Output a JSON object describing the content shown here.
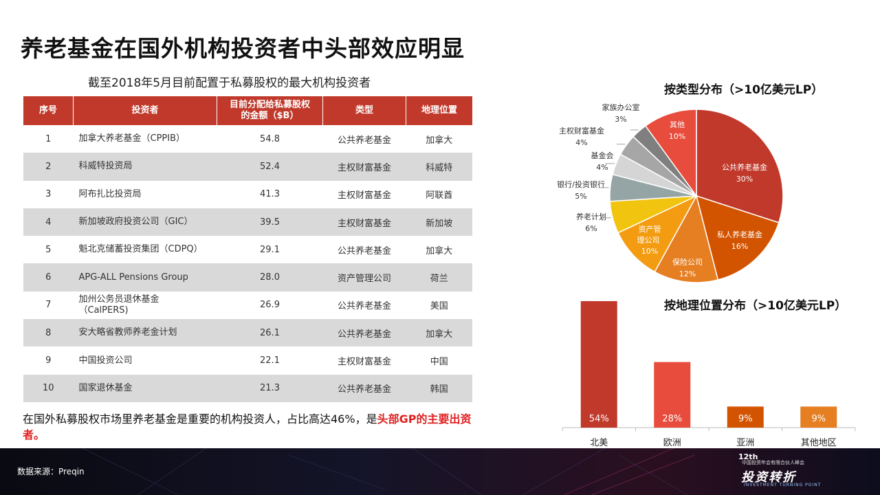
{
  "title": "养老基金在国外机构投资者中头部效应明显",
  "subtitle": "截至2018年5月目前配置于私募股权的最大机构投资者",
  "table": {
    "headers": [
      "序号",
      "投资者",
      "目前分配给私募股权\n的金额（$B）",
      "类型",
      "地理位置"
    ],
    "rows": [
      [
        "1",
        "加拿大养老基金（CPPIB）",
        "54.8",
        "公共养老基金",
        "加拿大"
      ],
      [
        "2",
        "科威特投资局",
        "52.4",
        "主权财富基金",
        "科威特"
      ],
      [
        "3",
        "阿布扎比投资局",
        "41.3",
        "主权财富基金",
        "阿联酋"
      ],
      [
        "4",
        "新加坡政府投资公司（GIC）",
        "39.5",
        "主权财富基金",
        "新加坡"
      ],
      [
        "5",
        "魁北克储蓄投资集团（CDPQ）",
        "29.1",
        "公共养老基金",
        "加拿大"
      ],
      [
        "6",
        "APG-ALL Pensions Group",
        "28.0",
        "资产管理公司",
        "荷兰"
      ],
      [
        "7",
        "加州公务员退休基金\n（CalPERS)",
        "26.9",
        "公共养老基金",
        "美国"
      ],
      [
        "8",
        "安大略省教师养老金计划",
        "26.1",
        "公共养老基金",
        "加拿大"
      ],
      [
        "9",
        "中国投资公司",
        "22.1",
        "主权财富基金",
        "中国"
      ],
      [
        "10",
        "国家退休基金",
        "21.3",
        "公共养老基金",
        "韩国"
      ]
    ]
  },
  "note": {
    "text": "在国外私募股权市场里养老基金是重要的机构投资人，占比高达46%，是",
    "highlight": "头部GP的主要出资者。"
  },
  "footer": {
    "source": "数据来源：Preqin",
    "logo_number": "12th",
    "logo_sub": "中国投资年会有限合伙人峰会",
    "logo_main": "投资转折",
    "logo_en": "INVESTMENT TURNING POINT"
  },
  "chart_data": [
    {
      "type": "pie",
      "title": "按类型分布（>10亿美元LP）",
      "slices": [
        {
          "label": "公共养老基金",
          "value": 30,
          "color": "#c0392b"
        },
        {
          "label": "私人养老基金",
          "value": 16,
          "color": "#d35400"
        },
        {
          "label": "保险公司",
          "value": 12,
          "color": "#e67e22"
        },
        {
          "label": "资产管理公司",
          "value": 10,
          "color": "#f39c12"
        },
        {
          "label": "养老计划",
          "value": 6,
          "color": "#f1c40f"
        },
        {
          "label": "银行/投资银行",
          "value": 5,
          "color": "#95a5a6"
        },
        {
          "label": "基金会",
          "value": 4,
          "color": "#d5d5d5"
        },
        {
          "label": "主权财富基金",
          "value": 4,
          "color": "#a6a6a6"
        },
        {
          "label": "家族办公室",
          "value": 3,
          "color": "#7f7f7f"
        },
        {
          "label": "其他",
          "value": 10,
          "color": "#e74c3c"
        }
      ]
    },
    {
      "type": "bar",
      "title": "按地理位置分布（>10亿美元LP）",
      "categories": [
        "北美",
        "欧洲",
        "亚洲",
        "其他地区"
      ],
      "values": [
        54,
        28,
        9,
        9
      ],
      "value_labels": [
        "54%",
        "28%",
        "9%",
        "9%"
      ],
      "colors": [
        "#c0392b",
        "#e74c3c",
        "#d35400",
        "#e67e22"
      ],
      "ylim": [
        0,
        54
      ]
    }
  ]
}
